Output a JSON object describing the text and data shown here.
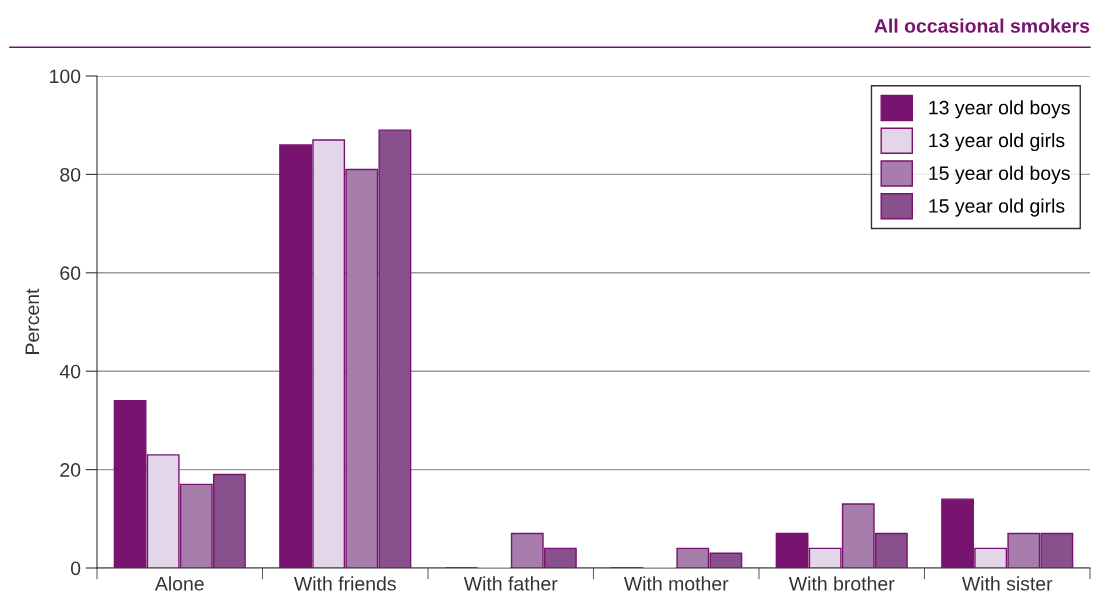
{
  "chart_data": {
    "type": "bar",
    "title": "All occasional smokers",
    "ylabel": "Percent",
    "categories": [
      "Alone",
      "With friends",
      "With father",
      "With mother",
      "With brother",
      "With sister"
    ],
    "series": [
      {
        "name": "13 year old boys",
        "color": "#78146f",
        "values": [
          34,
          86,
          0,
          0,
          7,
          14
        ]
      },
      {
        "name": "13 year old girls",
        "color": "#e3d6e8",
        "values": [
          23,
          87,
          0,
          0,
          4,
          4
        ]
      },
      {
        "name": "15 year old boys",
        "color": "#a77eab",
        "values": [
          17,
          81,
          7,
          4,
          13,
          7
        ]
      },
      {
        "name": "15 year old girls",
        "color": "#88508d",
        "values": [
          19,
          89,
          4,
          3,
          7,
          7
        ]
      }
    ],
    "ylim": [
      0,
      100
    ],
    "yticks": [
      0,
      20,
      40,
      60,
      80,
      100
    ],
    "grid": "y",
    "legend": "top right"
  }
}
